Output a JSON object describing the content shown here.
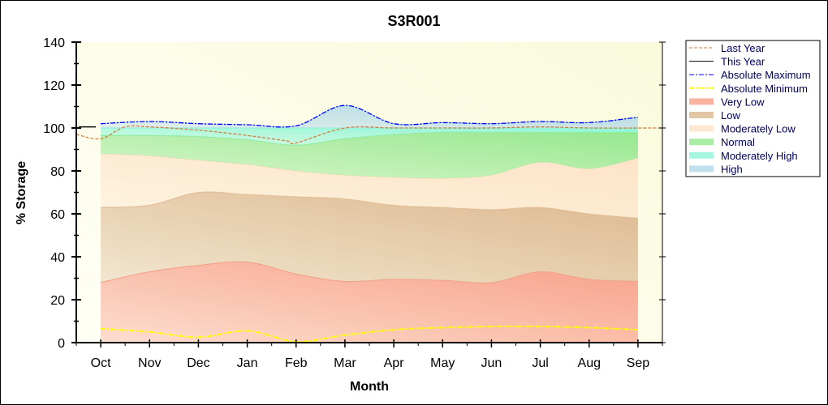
{
  "chart_data": {
    "type": "area",
    "title": "S3R001",
    "xlabel": "Month",
    "ylabel": "% Storage",
    "categories": [
      "Oct",
      "Nov",
      "Dec",
      "Jan",
      "Feb",
      "Mar",
      "Apr",
      "May",
      "Jun",
      "Jul",
      "Aug",
      "Sep"
    ],
    "ylim": [
      0,
      140
    ],
    "yticks": [
      0,
      20,
      40,
      60,
      80,
      100,
      120,
      140
    ],
    "grid": false,
    "legend_placement": "right",
    "bands": [
      {
        "name": "Very Low",
        "color": "#f8a08a",
        "upper": [
          28,
          33,
          36,
          37.5,
          32,
          28.5,
          29.5,
          29,
          28,
          33,
          29.5,
          28.5
        ]
      },
      {
        "name": "Low",
        "color": "#dcb890",
        "upper": [
          63,
          64,
          70,
          69,
          68,
          67,
          64,
          63,
          62,
          63,
          60,
          58
        ]
      },
      {
        "name": "Moderately Low",
        "color": "#fde3c8",
        "upper": [
          88,
          87,
          85,
          83,
          80,
          78,
          77,
          76.5,
          78,
          84,
          81,
          86
        ]
      },
      {
        "name": "Normal",
        "color": "#96e890",
        "upper": [
          96.5,
          96.5,
          96,
          94.5,
          92,
          95,
          97,
          98,
          98,
          98,
          98,
          98
        ]
      },
      {
        "name": "Moderately High",
        "color": "#90f5d8",
        "upper": [
          100,
          100,
          100,
          100,
          100,
          100,
          100,
          100,
          100,
          100,
          100,
          100
        ]
      },
      {
        "name": "High",
        "color": "#b0d8e8",
        "upper": [
          102,
          103,
          102,
          101.5,
          101,
          110.5,
          102,
          102.5,
          102,
          103,
          102.5,
          105
        ]
      }
    ],
    "lines": [
      {
        "name": "Last Year",
        "color": "#d08040",
        "style": "dashed",
        "x": [
          -0.5,
          0,
          0.5,
          1,
          2,
          3,
          3.8,
          4,
          5,
          6,
          7,
          8,
          9,
          10,
          11.5
        ],
        "values": [
          97,
          95,
          100.5,
          100.5,
          99,
          96.5,
          94,
          93,
          100,
          100,
          100,
          100,
          100.5,
          100,
          100
        ]
      },
      {
        "name": "This Year",
        "color": "#000000",
        "style": "solid",
        "x": [
          -0.45,
          -0.1
        ],
        "values": [
          100.5,
          100.5
        ]
      },
      {
        "name": "Absolute Maximum",
        "color": "#0000ff",
        "style": "dashdot",
        "x": [
          0,
          1,
          2,
          3,
          4,
          5,
          6,
          7,
          8,
          9,
          10,
          11
        ],
        "values": [
          102,
          103,
          102,
          101.5,
          101,
          110.5,
          102,
          102.5,
          102,
          103,
          102.5,
          105
        ]
      },
      {
        "name": "Absolute Minimum",
        "color": "#ffff00",
        "style": "dashdot",
        "x": [
          0,
          1,
          2,
          3,
          4,
          5,
          6,
          7,
          8,
          9,
          10,
          11
        ],
        "values": [
          6.5,
          5,
          2.5,
          5.5,
          0.5,
          3.5,
          6,
          7,
          7.5,
          7.5,
          7,
          6
        ]
      }
    ],
    "legend": [
      "Last Year",
      "This Year",
      "Absolute Maximum",
      "Absolute Minimum",
      "Very Low",
      "Low",
      "Moderately Low",
      "Normal",
      "Moderately High",
      "High"
    ]
  }
}
